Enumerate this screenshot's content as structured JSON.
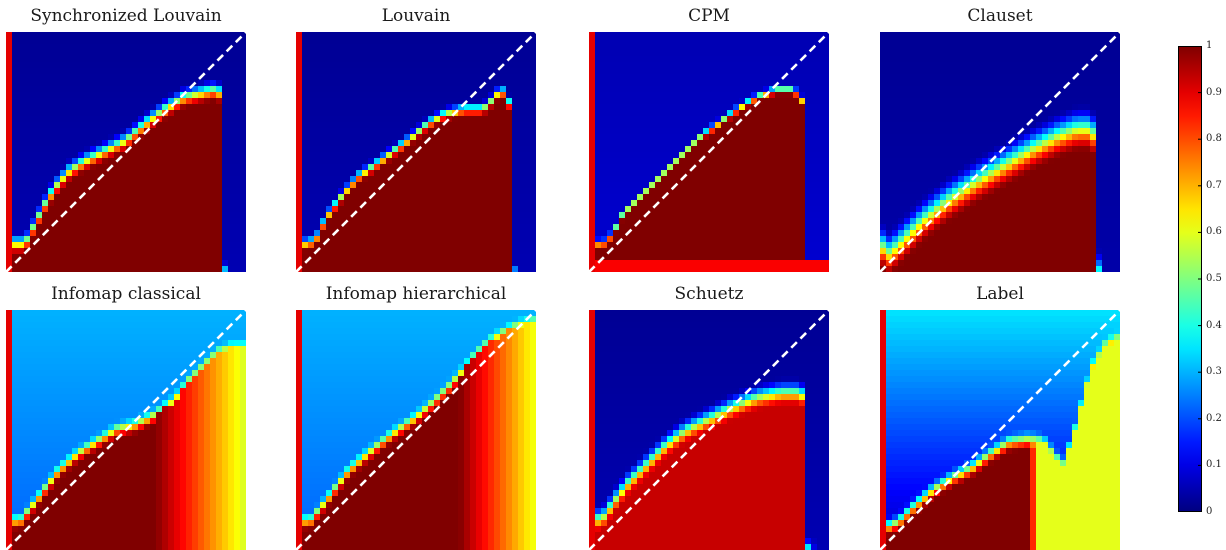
{
  "chart_data": {
    "type": "heatmap",
    "panels": [
      {
        "title": "Synchronized Louvain",
        "boundary": [
          [
            0.0,
            0.12
          ],
          [
            0.04,
            0.12
          ],
          [
            0.08,
            0.12
          ],
          [
            0.12,
            0.2
          ],
          [
            0.16,
            0.28
          ],
          [
            0.2,
            0.35
          ],
          [
            0.26,
            0.42
          ],
          [
            0.32,
            0.46
          ],
          [
            0.4,
            0.5
          ],
          [
            0.5,
            0.55
          ],
          [
            0.58,
            0.62
          ],
          [
            0.66,
            0.68
          ],
          [
            0.74,
            0.73
          ],
          [
            0.82,
            0.75
          ],
          [
            0.86,
            0.76
          ],
          [
            0.89,
            0.75
          ],
          [
            0.91,
            0.7
          ],
          [
            0.91,
            0.0
          ]
        ],
        "front_width": 0.1,
        "right_edge": 0.92,
        "right_mode": "blue",
        "top_strip": true,
        "background": [
          0.02,
          0.05
        ],
        "fill": 1.0
      },
      {
        "title": "Louvain",
        "boundary": [
          [
            0.0,
            0.12
          ],
          [
            0.04,
            0.12
          ],
          [
            0.08,
            0.13
          ],
          [
            0.1,
            0.18
          ],
          [
            0.14,
            0.25
          ],
          [
            0.2,
            0.33
          ],
          [
            0.26,
            0.4
          ],
          [
            0.32,
            0.44
          ],
          [
            0.4,
            0.5
          ],
          [
            0.48,
            0.56
          ],
          [
            0.55,
            0.62
          ],
          [
            0.62,
            0.66
          ],
          [
            0.7,
            0.68
          ],
          [
            0.78,
            0.68
          ],
          [
            0.82,
            0.72
          ],
          [
            0.85,
            0.76
          ],
          [
            0.88,
            0.74
          ],
          [
            0.9,
            0.65
          ],
          [
            0.9,
            0.0
          ]
        ],
        "front_width": 0.07,
        "right_edge": 0.92,
        "right_mode": "blue",
        "top_strip": true,
        "background": [
          0.02,
          0.05
        ],
        "fill": 1.0
      },
      {
        "title": "CPM",
        "boundary": [
          [
            0.0,
            0.12
          ],
          [
            0.06,
            0.12
          ],
          [
            0.1,
            0.16
          ],
          [
            0.14,
            0.24
          ],
          [
            0.22,
            0.32
          ],
          [
            0.3,
            0.4
          ],
          [
            0.38,
            0.48
          ],
          [
            0.46,
            0.56
          ],
          [
            0.54,
            0.62
          ],
          [
            0.62,
            0.68
          ],
          [
            0.7,
            0.73
          ],
          [
            0.78,
            0.76
          ],
          [
            0.84,
            0.76
          ],
          [
            0.88,
            0.74
          ],
          [
            0.9,
            0.68
          ],
          [
            0.9,
            0.0
          ]
        ],
        "front_width": 0.05,
        "right_edge": 0.93,
        "right_mode": "blue",
        "top_strip": true,
        "background": [
          0.05,
          0.08
        ],
        "fill": 1.0,
        "bottom_band": 0.88
      },
      {
        "title": "Clauset",
        "boundary": [
          [
            0.0,
            0.12
          ],
          [
            0.04,
            0.08
          ],
          [
            0.1,
            0.14
          ],
          [
            0.18,
            0.22
          ],
          [
            0.28,
            0.3
          ],
          [
            0.4,
            0.38
          ],
          [
            0.52,
            0.45
          ],
          [
            0.64,
            0.52
          ],
          [
            0.74,
            0.57
          ],
          [
            0.82,
            0.6
          ],
          [
            0.88,
            0.6
          ],
          [
            0.9,
            0.55
          ],
          [
            0.9,
            0.0
          ]
        ],
        "front_width": 0.2,
        "right_edge": 0.92,
        "right_mode": "blue",
        "top_strip": false,
        "background": [
          0.02,
          0.04
        ],
        "fill": 1.0
      },
      {
        "title": "Infomap classical",
        "boundary": [
          [
            0.0,
            0.12
          ],
          [
            0.06,
            0.12
          ],
          [
            0.1,
            0.17
          ],
          [
            0.16,
            0.25
          ],
          [
            0.22,
            0.33
          ],
          [
            0.3,
            0.4
          ],
          [
            0.38,
            0.45
          ],
          [
            0.46,
            0.5
          ],
          [
            0.54,
            0.52
          ],
          [
            0.62,
            0.56
          ],
          [
            0.7,
            0.62
          ],
          [
            0.76,
            0.7
          ],
          [
            0.82,
            0.76
          ],
          [
            0.88,
            0.82
          ],
          [
            0.94,
            0.84
          ],
          [
            1.0,
            0.84
          ]
        ],
        "front_width": 0.08,
        "right_edge": 0.62,
        "right_mode": "gradient",
        "right_end": 0.58,
        "top_strip": true,
        "background": [
          0.3,
          0.22
        ],
        "fill": 1.0
      },
      {
        "title": "Infomap hierarchical",
        "boundary": [
          [
            0.0,
            0.12
          ],
          [
            0.06,
            0.12
          ],
          [
            0.1,
            0.17
          ],
          [
            0.16,
            0.25
          ],
          [
            0.22,
            0.33
          ],
          [
            0.3,
            0.4
          ],
          [
            0.4,
            0.48
          ],
          [
            0.5,
            0.55
          ],
          [
            0.58,
            0.62
          ],
          [
            0.64,
            0.68
          ],
          [
            0.7,
            0.75
          ],
          [
            0.74,
            0.8
          ],
          [
            0.8,
            0.86
          ],
          [
            0.86,
            0.9
          ],
          [
            0.92,
            0.93
          ],
          [
            1.0,
            0.95
          ]
        ],
        "front_width": 0.08,
        "right_edge": 0.68,
        "right_mode": "gradient",
        "right_end": 0.6,
        "top_strip": true,
        "background": [
          0.3,
          0.22
        ],
        "fill": 1.0
      },
      {
        "title": "Schuetz",
        "boundary": [
          [
            0.0,
            0.12
          ],
          [
            0.06,
            0.14
          ],
          [
            0.1,
            0.2
          ],
          [
            0.16,
            0.28
          ],
          [
            0.24,
            0.36
          ],
          [
            0.32,
            0.44
          ],
          [
            0.4,
            0.5
          ],
          [
            0.5,
            0.55
          ],
          [
            0.6,
            0.6
          ],
          [
            0.7,
            0.64
          ],
          [
            0.8,
            0.66
          ],
          [
            0.88,
            0.66
          ],
          [
            0.91,
            0.62
          ],
          [
            0.91,
            0.0
          ]
        ],
        "front_width": 0.12,
        "right_edge": 0.93,
        "right_mode": "blue",
        "top_strip": true,
        "background": [
          0.02,
          0.05
        ],
        "fill": 0.93
      },
      {
        "title": "Label",
        "boundary": [
          [
            0.0,
            0.12
          ],
          [
            0.04,
            0.1
          ],
          [
            0.08,
            0.12
          ],
          [
            0.14,
            0.18
          ],
          [
            0.22,
            0.25
          ],
          [
            0.3,
            0.3
          ],
          [
            0.38,
            0.34
          ],
          [
            0.46,
            0.4
          ],
          [
            0.54,
            0.45
          ],
          [
            0.62,
            0.46
          ],
          [
            0.68,
            0.45
          ],
          [
            0.72,
            0.4
          ],
          [
            0.76,
            0.35
          ],
          [
            0.8,
            0.45
          ],
          [
            0.84,
            0.6
          ],
          [
            0.88,
            0.75
          ],
          [
            0.94,
            0.85
          ],
          [
            1.0,
            0.88
          ]
        ],
        "front_width": 0.09,
        "right_edge": 0.62,
        "right_mode": "flat",
        "right_value": 0.6,
        "top_strip": true,
        "background": [
          0.35,
          0.05
        ],
        "fill": 1.0
      }
    ],
    "colorbar": {
      "colormap": "jet",
      "range": [
        0,
        1
      ],
      "ticks": [
        0,
        0.1,
        0.2,
        0.3,
        0.4,
        0.5,
        0.6,
        0.7,
        0.8,
        0.9,
        1
      ]
    },
    "diagonal": {
      "style": "dashed",
      "color": "#ffffff"
    },
    "xlim": [
      0,
      1
    ],
    "ylim": [
      0,
      1
    ]
  }
}
